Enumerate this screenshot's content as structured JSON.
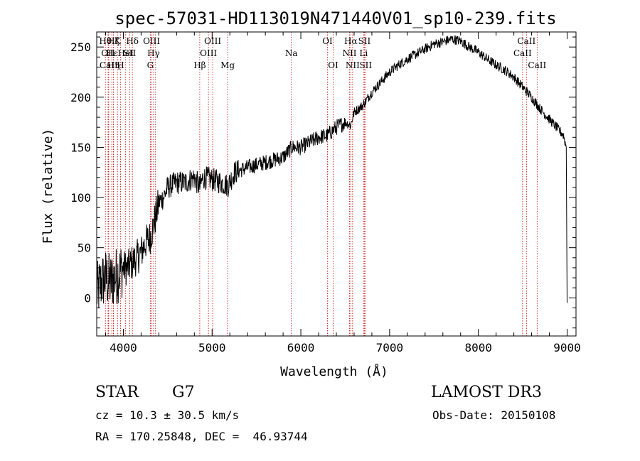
{
  "chart_data": {
    "type": "line",
    "title": "spec-57031-HD113019N471440V01_sp10-239.fits",
    "xlabel": "Wavelength (Å)",
    "ylabel": "Flux (relative)",
    "xlim": [
      3700,
      9100
    ],
    "ylim": [
      -38,
      265
    ],
    "xticks": [
      4000,
      5000,
      6000,
      7000,
      8000,
      9000
    ],
    "yticks": [
      0,
      50,
      100,
      150,
      200,
      250
    ],
    "series": [
      {
        "name": "flux",
        "x": [
          3700,
          3750,
          3800,
          3850,
          3900,
          3950,
          4000,
          4050,
          4100,
          4150,
          4200,
          4250,
          4300,
          4350,
          4400,
          4450,
          4500,
          4600,
          4700,
          4800,
          4860,
          4900,
          5000,
          5100,
          5180,
          5250,
          5400,
          5600,
          5800,
          5900,
          6000,
          6100,
          6200,
          6300,
          6400,
          6500,
          6560,
          6600,
          6700,
          6800,
          6900,
          7000,
          7100,
          7200,
          7300,
          7400,
          7500,
          7600,
          7700,
          7800,
          7900,
          8000,
          8100,
          8200,
          8300,
          8400,
          8500,
          8600,
          8700,
          8800,
          8900,
          8960,
          8990,
          9000
        ],
        "values": [
          5,
          15,
          20,
          15,
          20,
          25,
          30,
          30,
          35,
          40,
          45,
          55,
          60,
          75,
          95,
          100,
          110,
          115,
          115,
          120,
          110,
          120,
          118,
          115,
          112,
          125,
          130,
          135,
          140,
          150,
          150,
          155,
          160,
          162,
          170,
          175,
          172,
          185,
          192,
          205,
          215,
          225,
          232,
          238,
          243,
          248,
          253,
          255,
          258,
          256,
          250,
          245,
          238,
          232,
          227,
          220,
          210,
          200,
          188,
          178,
          168,
          162,
          150,
          -5
        ]
      }
    ],
    "lines": [
      {
        "wl": 3798,
        "label": "Hθ",
        "row": 1
      },
      {
        "wl": 3828,
        "label": "OII",
        "row": 2
      },
      {
        "wl": 3835,
        "label": "CaII",
        "row": 3
      },
      {
        "wl": 3870,
        "label": "Hε",
        "row": 2
      },
      {
        "wl": 3889,
        "label": "Hζ",
        "row": 1
      },
      {
        "wl": 3934,
        "label": "K",
        "row": 1
      },
      {
        "wl": 3968,
        "label": "H",
        "row": 3
      },
      {
        "wl": 3890,
        "label": "Hη",
        "row": 3
      },
      {
        "wl": 4026,
        "label": "HeI",
        "row": 2
      },
      {
        "wl": 4072,
        "label": "SII",
        "row": 2
      },
      {
        "wl": 4102,
        "label": "Hδ",
        "row": 1
      },
      {
        "wl": 4304,
        "label": "G",
        "row": 3
      },
      {
        "wl": 4318,
        "label": "OIII",
        "row": 1
      },
      {
        "wl": 4341,
        "label": "Hγ",
        "row": 2
      },
      {
        "wl": 4363,
        "label": "",
        "row": 0
      },
      {
        "wl": 4861,
        "label": "Hβ",
        "row": 3
      },
      {
        "wl": 4959,
        "label": "OIII",
        "row": 2
      },
      {
        "wl": 5007,
        "label": "OIII",
        "row": 1
      },
      {
        "wl": 5175,
        "label": "Mg",
        "row": 3
      },
      {
        "wl": 5893,
        "label": "Na",
        "row": 2
      },
      {
        "wl": 6300,
        "label": "OI",
        "row": 1
      },
      {
        "wl": 6364,
        "label": "OI",
        "row": 3
      },
      {
        "wl": 6548,
        "label": "NII",
        "row": 2
      },
      {
        "wl": 6563,
        "label": "Hα",
        "row": 1
      },
      {
        "wl": 6583,
        "label": "NII",
        "row": 3
      },
      {
        "wl": 6707,
        "label": "Li",
        "row": 2
      },
      {
        "wl": 6716,
        "label": "SII",
        "row": 1
      },
      {
        "wl": 6731,
        "label": "SII",
        "row": 3
      },
      {
        "wl": 8498,
        "label": "CaII",
        "row": 2
      },
      {
        "wl": 8542,
        "label": "CaII",
        "row": 1
      },
      {
        "wl": 8662,
        "label": "CaII",
        "row": 3
      }
    ]
  },
  "info": {
    "object_class": "STAR",
    "subclass": "G7",
    "survey": "LAMOST DR3",
    "redshift": "cz = 10.3 ± 30.5 km/s",
    "obs_date": "Obs-Date: 20150108",
    "coords": "RA = 170.25848, DEC =  46.93744"
  }
}
